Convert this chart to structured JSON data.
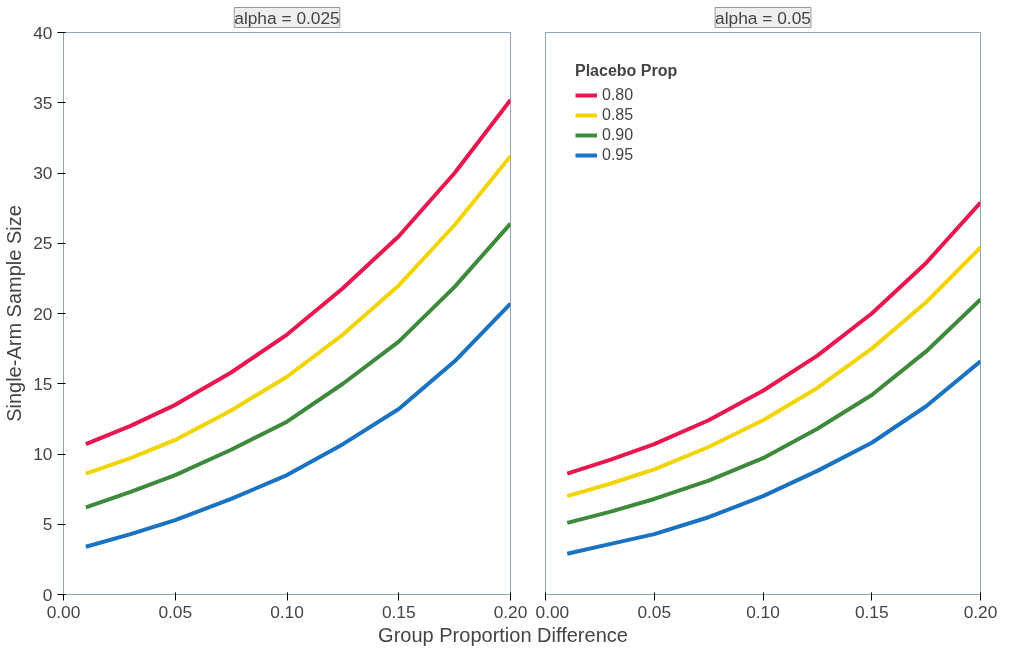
{
  "chart_data": [
    {
      "type": "line",
      "title": "alpha = 0.025",
      "ylabel": "Single-Arm Sample Size",
      "xlabel": "Group Proportion Difference",
      "x": [
        0.01,
        0.03,
        0.05,
        0.075,
        0.1,
        0.125,
        0.15,
        0.175,
        0.2
      ],
      "series": [
        {
          "color": "#e8174f",
          "values": [
            10.7,
            12.0,
            13.5,
            15.8,
            18.5,
            21.8,
            25.5,
            30.0,
            35.2
          ]
        },
        {
          "color": "#f2d500",
          "values": [
            8.6,
            9.7,
            11.0,
            13.1,
            15.5,
            18.5,
            22.0,
            26.3,
            31.2
          ]
        },
        {
          "color": "#3d8a3d",
          "values": [
            6.2,
            7.3,
            8.5,
            10.3,
            12.3,
            15.0,
            18.0,
            21.9,
            26.4
          ]
        },
        {
          "color": "#1a72c2",
          "values": [
            3.4,
            4.3,
            5.3,
            6.8,
            8.5,
            10.7,
            13.2,
            16.6,
            20.7
          ]
        }
      ],
      "xlim": [
        0.0,
        0.2
      ],
      "ylim": [
        0,
        40
      ],
      "xticks": [
        {
          "value": 0,
          "label": "0.00"
        },
        {
          "value": 0.05,
          "label": "0.05"
        },
        {
          "value": 0.1,
          "label": "0.10"
        },
        {
          "value": 0.15,
          "label": "0.15"
        },
        {
          "value": 0.2,
          "label": "0.20"
        }
      ],
      "yticks": [
        0,
        5,
        10,
        15,
        20,
        25,
        30,
        35,
        40
      ],
      "grid": false,
      "legend": false,
      "marker": "none",
      "line_style": "solid"
    },
    {
      "type": "line",
      "title": "alpha = 0.05",
      "legend_title": "Placebo Prop",
      "x": [
        0.01,
        0.03,
        0.05,
        0.075,
        0.1,
        0.125,
        0.15,
        0.175,
        0.2
      ],
      "series": [
        {
          "name": "0.80",
          "color": "#e8174f",
          "values": [
            8.6,
            9.6,
            10.7,
            12.4,
            14.5,
            17.0,
            20.0,
            23.6,
            27.9
          ]
        },
        {
          "name": "0.85",
          "color": "#f2d500",
          "values": [
            7.0,
            7.9,
            8.9,
            10.5,
            12.4,
            14.7,
            17.5,
            20.8,
            24.7
          ]
        },
        {
          "name": "0.90",
          "color": "#3d8a3d",
          "values": [
            5.1,
            5.9,
            6.8,
            8.1,
            9.7,
            11.8,
            14.2,
            17.3,
            21.0
          ]
        },
        {
          "name": "0.95",
          "color": "#1a72c2",
          "values": [
            2.9,
            3.6,
            4.3,
            5.5,
            7.0,
            8.8,
            10.8,
            13.4,
            16.6
          ]
        }
      ],
      "xlim": [
        0.0,
        0.2
      ],
      "ylim": [
        0,
        40
      ],
      "xticks": [
        {
          "value": 0,
          "label": "0.00"
        },
        {
          "value": 0.05,
          "label": "0.05"
        },
        {
          "value": 0.1,
          "label": "0.10"
        },
        {
          "value": 0.15,
          "label": "0.15"
        },
        {
          "value": 0.2,
          "label": "0.20"
        }
      ],
      "yticks": [
        0,
        5,
        10,
        15,
        20,
        25,
        30,
        35,
        40
      ],
      "tick_labels": "x",
      "grid": false,
      "legend": "top left",
      "marker": "none",
      "line_style": "solid"
    }
  ]
}
